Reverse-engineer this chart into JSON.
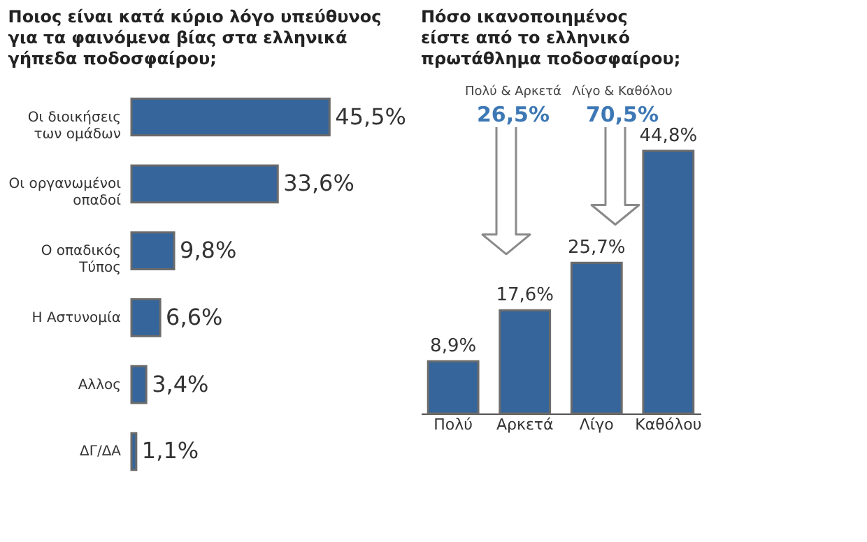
{
  "chart_data": [
    {
      "type": "bar",
      "orientation": "horizontal",
      "title": "Ποιος είναι κατά κύριο λόγο υπεύθυνος για τα φαινόμενα βίας στα ελληνικά γήπεδα ποδοσφαίρου;",
      "categories": [
        "Οι διοικήσεις των ομάδων",
        "Οι οργανωμένοι οπαδοί",
        "Ο οπαδικός Τύπος",
        "Η Αστυνομία",
        "Αλλος",
        "ΔΓ/ΔΑ"
      ],
      "values": [
        45.5,
        33.6,
        9.8,
        6.6,
        3.4,
        1.1
      ],
      "value_labels": [
        "45,5%",
        "33,6%",
        "9,8%",
        "6,6%",
        "3,4%",
        "1,1%"
      ],
      "color": "#35659b",
      "tick_labels": "y"
    },
    {
      "type": "bar",
      "title": "Πόσο ικανοποιημένος είστε από το ελληνικό πρωτάθλημα ποδοσφαίρου;",
      "categories": [
        "Πολύ",
        "Αρκετά",
        "Λίγο",
        "Καθόλου"
      ],
      "values": [
        8.9,
        17.6,
        25.7,
        44.8
      ],
      "value_labels": [
        "8,9%",
        "17,6%",
        "25,7%",
        "44,8%"
      ],
      "color": "#35659b",
      "tick_labels": "x",
      "annotations": [
        "Πολύ & Αρκετά",
        "26,5%",
        "Λίγο & Καθόλου",
        "70,5%"
      ]
    }
  ]
}
